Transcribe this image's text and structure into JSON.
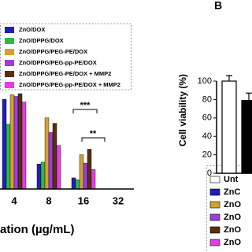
{
  "charts": [
    {
      "type": "bar",
      "x_label": "ation (µg/mL)",
      "categories": [
        "4",
        "8",
        "16",
        "32"
      ],
      "ylim": [
        0,
        120
      ],
      "series": [
        {
          "name": "ZnO/DOX",
          "color": "#1f1fb4",
          "values": [
            97,
            27,
            12,
            null
          ]
        },
        {
          "name": "ZnO/DPPG/DOX",
          "color": "#2db84a",
          "values": [
            70,
            29,
            10,
            null
          ]
        },
        {
          "name": "ZnO/DPPG/PEG-PE/DOX",
          "color": "#d4a032",
          "values": [
            102,
            77,
            37,
            null
          ]
        },
        {
          "name": "ZnO/DPPG/PEG-pp-PE/DOX",
          "color": "#9a3fe0",
          "values": [
            100,
            61,
            28,
            null
          ]
        },
        {
          "name": "ZnO/DPPG/PEG-PE/DOX + MMP2",
          "color": "#5a2e10",
          "values": [
            103,
            71,
            43,
            null
          ]
        },
        {
          "name": "ZnO/DPPG/PEG-pp-PE/DOX + MMP2",
          "color": "#e040e0",
          "values": [
            94,
            47,
            21,
            null
          ]
        }
      ],
      "annotations": [
        "***",
        "**"
      ]
    },
    {
      "type": "bar",
      "panel_label": "B",
      "y_label": "Cell viability (%)",
      "categories": [
        null,
        null
      ],
      "values": [
        100,
        79
      ],
      "errors": [
        6,
        8
      ],
      "colors": [
        "#ffffff",
        "#000000"
      ],
      "ylim": [
        0,
        100
      ],
      "yticks": [
        0,
        20,
        40,
        60,
        80,
        100
      ],
      "legend": [
        {
          "label": "Unt",
          "color": "#ffffff"
        },
        {
          "label": "ZnC",
          "color": "#1f1fb4"
        },
        {
          "label": "ZnO",
          "color": "#d4a032"
        },
        {
          "label": "ZnO",
          "color": "#9a3fe0"
        },
        {
          "label": "ZnO",
          "color": "#5a2e10"
        },
        {
          "label": "ZnO",
          "color": "#e040e0"
        }
      ]
    }
  ]
}
